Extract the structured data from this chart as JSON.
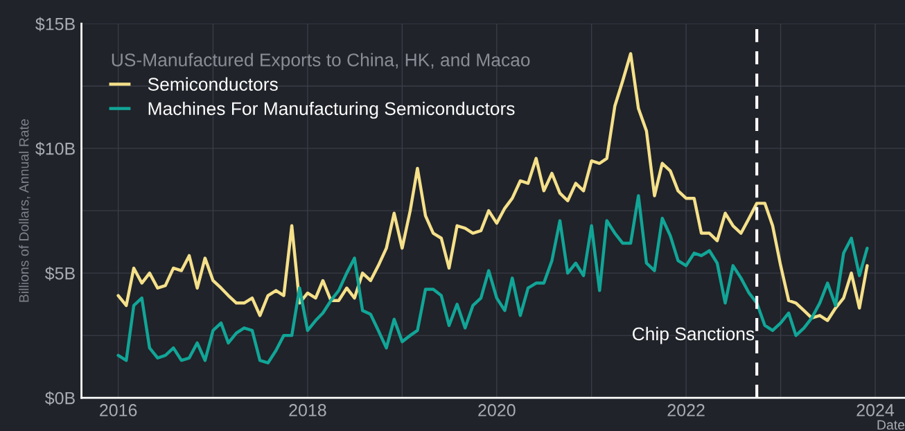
{
  "chart_data": {
    "type": "line",
    "ylabel": "Billions of Dollars, Annual Rate",
    "xlabel": "Date",
    "legend_title": "US-Manufactured Exports to China, HK, and Macao",
    "legend": "top left",
    "grid": true,
    "marker": "none",
    "line_style": "solid",
    "x": [
      "2016-01",
      "2016-02",
      "2016-03",
      "2016-04",
      "2016-05",
      "2016-06",
      "2016-07",
      "2016-08",
      "2016-09",
      "2016-10",
      "2016-11",
      "2016-12",
      "2017-01",
      "2017-02",
      "2017-03",
      "2017-04",
      "2017-05",
      "2017-06",
      "2017-07",
      "2017-08",
      "2017-09",
      "2017-10",
      "2017-11",
      "2017-12",
      "2018-01",
      "2018-02",
      "2018-03",
      "2018-04",
      "2018-05",
      "2018-06",
      "2018-07",
      "2018-08",
      "2018-09",
      "2018-10",
      "2018-11",
      "2018-12",
      "2019-01",
      "2019-02",
      "2019-03",
      "2019-04",
      "2019-05",
      "2019-06",
      "2019-07",
      "2019-08",
      "2019-09",
      "2019-10",
      "2019-11",
      "2019-12",
      "2020-01",
      "2020-02",
      "2020-03",
      "2020-04",
      "2020-05",
      "2020-06",
      "2020-07",
      "2020-08",
      "2020-09",
      "2020-10",
      "2020-11",
      "2020-12",
      "2021-01",
      "2021-02",
      "2021-03",
      "2021-04",
      "2021-05",
      "2021-06",
      "2021-07",
      "2021-08",
      "2021-09",
      "2021-10",
      "2021-11",
      "2021-12",
      "2022-01",
      "2022-02",
      "2022-03",
      "2022-04",
      "2022-05",
      "2022-06",
      "2022-07",
      "2022-08",
      "2022-09",
      "2022-10",
      "2022-11",
      "2022-12",
      "2023-01",
      "2023-02",
      "2023-03",
      "2023-04",
      "2023-05",
      "2023-06",
      "2023-07",
      "2023-08",
      "2023-09",
      "2023-10",
      "2023-11",
      "2023-12"
    ],
    "series": [
      {
        "name": "Semiconductors",
        "color": "#f5e08a",
        "values": [
          4.1,
          3.7,
          5.2,
          4.6,
          5.0,
          4.4,
          4.5,
          5.2,
          5.1,
          5.7,
          4.4,
          5.6,
          4.7,
          4.4,
          4.1,
          3.8,
          3.8,
          4.0,
          3.3,
          4.1,
          4.3,
          4.1,
          6.9,
          3.8,
          4.2,
          4.0,
          4.7,
          3.9,
          3.9,
          4.4,
          4.0,
          5.0,
          4.7,
          5.3,
          6.0,
          7.4,
          6.0,
          7.5,
          9.2,
          7.3,
          6.6,
          6.4,
          5.2,
          6.9,
          6.8,
          6.6,
          6.7,
          7.5,
          7.0,
          7.6,
          8.0,
          8.7,
          8.6,
          9.6,
          8.3,
          9.0,
          8.2,
          7.9,
          8.6,
          8.3,
          9.5,
          9.4,
          9.6,
          11.7,
          12.7,
          13.8,
          11.6,
          10.7,
          8.1,
          9.4,
          9.1,
          8.3,
          8.0,
          8.0,
          6.6,
          6.6,
          6.3,
          7.4,
          6.9,
          6.6,
          7.2,
          7.8,
          7.8,
          6.9,
          5.3,
          3.9,
          3.8,
          3.5,
          3.2,
          3.3,
          3.1,
          3.6,
          4.0,
          5.0,
          3.6,
          5.3
        ]
      },
      {
        "name": "Machines For Manufacturing Semiconductors",
        "color": "#11a597",
        "values": [
          1.7,
          1.5,
          3.7,
          4.0,
          2.0,
          1.6,
          1.7,
          2.0,
          1.5,
          1.6,
          2.2,
          1.5,
          2.7,
          3.0,
          2.2,
          2.6,
          2.8,
          2.7,
          1.5,
          1.4,
          1.9,
          2.5,
          2.5,
          4.4,
          2.7,
          3.1,
          3.4,
          3.9,
          4.3,
          5.0,
          5.6,
          3.5,
          3.35,
          2.7,
          2.0,
          3.15,
          2.25,
          2.5,
          2.7,
          4.35,
          4.35,
          4.1,
          2.9,
          3.75,
          2.8,
          3.7,
          4.0,
          5.1,
          4.0,
          3.5,
          4.8,
          3.3,
          4.4,
          4.6,
          4.6,
          5.5,
          7.1,
          5.0,
          5.4,
          4.9,
          6.9,
          4.3,
          7.1,
          6.6,
          6.2,
          6.2,
          8.1,
          5.4,
          5.1,
          7.2,
          6.5,
          5.5,
          5.3,
          5.8,
          5.7,
          5.9,
          5.4,
          3.8,
          5.3,
          4.8,
          4.2,
          3.8,
          2.9,
          2.7,
          3.0,
          3.4,
          2.5,
          2.8,
          3.2,
          3.8,
          4.6,
          3.7,
          5.8,
          6.4,
          4.9,
          6.0
        ]
      }
    ],
    "xlim": [
      "2015-08-12",
      "2024-04-25"
    ],
    "xticks": [
      {
        "value": "2016",
        "label": "2016"
      },
      {
        "value": "2017",
        "label": null
      },
      {
        "value": "2018",
        "label": "2018"
      },
      {
        "value": "2019",
        "label": null
      },
      {
        "value": "2020",
        "label": "2020"
      },
      {
        "value": "2021",
        "label": null
      },
      {
        "value": "2022",
        "label": "2022"
      },
      {
        "value": "2023",
        "label": null
      },
      {
        "value": "2024",
        "label": "2024"
      }
    ],
    "ylim": [
      0,
      15
    ],
    "yticks": [
      {
        "value": 0,
        "label": "$0B"
      },
      {
        "value": 2.5,
        "label": null
      },
      {
        "value": 5,
        "label": "$5B"
      },
      {
        "value": 7.5,
        "label": null
      },
      {
        "value": 10,
        "label": "$10B"
      },
      {
        "value": 12.5,
        "label": null
      },
      {
        "value": 15,
        "label": "$15B"
      }
    ],
    "ref_lines": [
      {
        "axis": "x",
        "value": "2022-10",
        "label": "Chip Sanctions",
        "color": "#ffffff",
        "line_style": "dashed"
      }
    ]
  }
}
